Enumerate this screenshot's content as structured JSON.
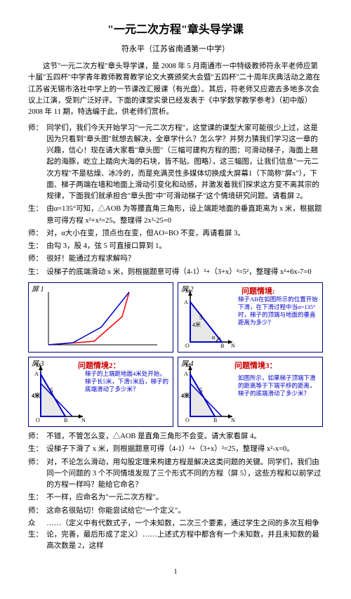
{
  "title": "\"一元二次方程\"章头导学课",
  "author": "符永平（江苏省南通第一中学）",
  "intro": "这节\"一元二次方程\"章头导学课，是 2008 年 5 月南通市一中特级教师符永平老师应第十届\"五四杯\"中学青年教师教育教学论文大赛颁奖大会暨\"五四杯\"二十周年庆典活动之邀在江苏省无锡市洛社中学上的一节课改汇报课（有光盘）。其后，符老师又应邀去多地多次会议上江演，受到广泛好评。下面的课堂实录已经发表于《中学数学教学参考》（初中版）2008 年 11 期，特选编于此，供老师们赏析。",
  "dialogue": [
    {
      "sp": "师：",
      "txt": "同学们，我们今天开始学习\"一元二次方程\"，这堂课的课型大家可能很少上过，这是因为只看到\"章头图\"就想去解决，全章学什么？怎么学？并努力猜我们学习这一章的兴趣，信心！现在请大家看\"章头图\"（三幅可建构方程的图：可滑动梯子，海面上翘起的海豚，屹立上踏向大海的石块，皆不贴。图略），这三幅图，让我们信息\"一元二次方程\"不是枯燥、冰冷的，而是充满灵性多媒体切换成大屏幕1（下简称\"屏x\"），下面、梯子两端在墙和地面上滑动引变化和动感，并激发着我们探求这方变不离其宗的规律，下面我们就承担合\"章头图\"中\"可滑动梯子\"这个情境研究问题。请看屏 2。"
    },
    {
      "sp": "生：",
      "txt": "由α=135°可知，△AOB 为等腰直角三角形，设上端距地面的垂直距离为 x 米，根据题意可得方程 x²+x²=25。整理得 2x²-25=0"
    },
    {
      "sp": "师：",
      "txt": "对，α大小在变，顶点也在变，但AO=BO 不变，再请看屏 3。"
    },
    {
      "sp": "生：",
      "txt": "由勾 3，股 4，弦 5 可直接口算到 1。"
    },
    {
      "sp": "师：",
      "txt": "很好！能通过方程求解吗？"
    },
    {
      "sp": "生：",
      "txt": "设梯子的底端滑动 x 米，则根据题意可得（4-1）²+（3+x）²=5²，整理得 x²+6x-7=0"
    }
  ],
  "panel1": {
    "label": "屏 1"
  },
  "panel2": {
    "label": "屏 2",
    "title": "问题情境:",
    "text": "梯子AB在如图所示的位置开始下滑，在下滑过程中当α=135°时，梯子的顶端与地面的垂直距离为多少？",
    "ptM": "M",
    "ptA": "A",
    "ptO": "O",
    "ptB": "B",
    "ptN": "N",
    "len": "5",
    "len4": "4米",
    "alpha": "α"
  },
  "panel3": {
    "label": "屏 3",
    "title": "问题情境2：",
    "text": "梯子的上端距地面4米处开始，梯子长5米，下滑1米后，梯子的底端滑动了多少米？",
    "ptM": "M",
    "ptA": "A",
    "ptO": "O",
    "ptB": "B",
    "ptN": "N",
    "len5": "5",
    "len4": "4米"
  },
  "panel4": {
    "label": "屏 4",
    "title": "问题情境3：",
    "text": "如图所示，如果梯子顶端下滑的距离等于下端平移的距离，梯子的底端滑动了多少米？",
    "ptM": "M",
    "ptA": "A",
    "ptO": "O",
    "ptB": "B",
    "ptN": "N",
    "len5": "5",
    "len4": "4米"
  },
  "dialogue2": [
    {
      "sp": "师：",
      "txt": "不错，不管怎么变，△AOB 是直角三角形不会变。请大家看屏 4。"
    },
    {
      "sp": "生：",
      "txt": "设梯子下滑了 x 米，则根据题意可得（4-1）²+（3+x）²=25，整理得 x²-x=0。"
    },
    {
      "sp": "师：",
      "txt": "对，不论怎么滑动，用勾股定理来构建方程是解决这类问题的关键。同学们，我们由同一个问题的 3 个不同情境发现了三个形式不同的方程（屏 5），这些方程和以前学过的方程一样吗？能给它命名？"
    },
    {
      "sp": "生：",
      "txt": "不一样，应命名为\"一元二次方程\"。"
    },
    {
      "sp": "师：",
      "txt": "这命名很贴切！你能尝试给它\"一个定义\"。"
    },
    {
      "sp": "众生：",
      "txt": "……（定义中有代数式子，一个未知数，二次三个要素，通过学生之间的多次互相争论，完善，最后形成了定义）……上述式方程中都含有一个未知数，并且未知数的最高次数是 2，这样"
    }
  ],
  "pageNum": "1",
  "colors": {
    "border": "#000080",
    "red": "#cc0000",
    "blue": "#0000cc",
    "fill": "#e8e8e8"
  }
}
